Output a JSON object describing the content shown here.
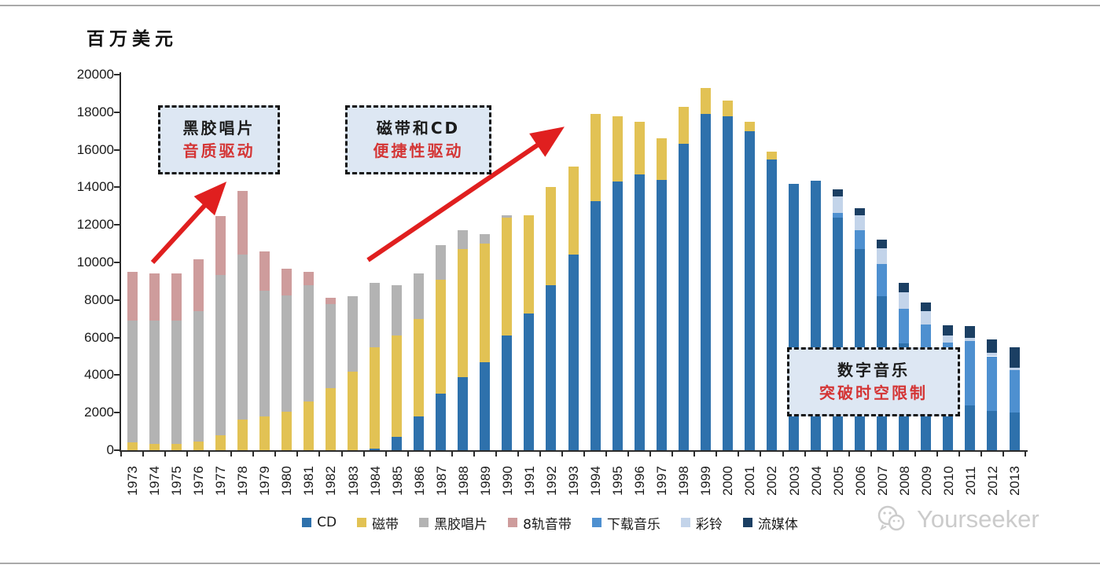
{
  "page": {
    "watermark": "Yourseeker"
  },
  "chart_data": {
    "type": "bar",
    "stacked": true,
    "unit_label": "百万美元",
    "ylabel": "百万美元",
    "xlabel": "",
    "ylim": [
      0,
      20000
    ],
    "ytick_step": 2000,
    "yticks": [
      0,
      2000,
      4000,
      6000,
      8000,
      10000,
      12000,
      14000,
      16000,
      18000,
      20000
    ],
    "grid": false,
    "legend_position": "bottom",
    "categories": [
      "1973",
      "1974",
      "1975",
      "1976",
      "1977",
      "1978",
      "1979",
      "1980",
      "1981",
      "1982",
      "1983",
      "1984",
      "1985",
      "1986",
      "1987",
      "1988",
      "1989",
      "1990",
      "1991",
      "1992",
      "1993",
      "1994",
      "1995",
      "1996",
      "1997",
      "1998",
      "1999",
      "2000",
      "2001",
      "2002",
      "2003",
      "2004",
      "2005",
      "2006",
      "2007",
      "2008",
      "2009",
      "2010",
      "2011",
      "2012",
      "2013"
    ],
    "series": [
      {
        "name": "CD",
        "color": "#2e71ac",
        "values": [
          0,
          0,
          0,
          0,
          0,
          0,
          0,
          0,
          0,
          0,
          0,
          100,
          700,
          1800,
          3000,
          3900,
          4700,
          6100,
          7300,
          8800,
          10400,
          13250,
          14300,
          14700,
          14400,
          16300,
          17900,
          17800,
          17000,
          15500,
          14200,
          14350,
          12400,
          10700,
          8200,
          5700,
          3400,
          3000,
          2400,
          2100,
          2000
        ]
      },
      {
        "name": "磁带",
        "color": "#e2c254",
        "values": [
          400,
          350,
          350,
          450,
          800,
          1650,
          1800,
          2050,
          2600,
          3300,
          4200,
          5400,
          5400,
          5200,
          6100,
          6800,
          6300,
          6300,
          5200,
          5200,
          4700,
          4650,
          3500,
          2800,
          2200,
          2000,
          1400,
          800,
          500,
          400,
          0,
          0,
          0,
          0,
          0,
          0,
          0,
          0,
          0,
          0,
          0
        ]
      },
      {
        "name": "黑胶唱片",
        "color": "#b3b3b3",
        "values": [
          6500,
          6550,
          6550,
          6950,
          8550,
          8750,
          6700,
          6200,
          6200,
          4500,
          4000,
          3400,
          2700,
          2400,
          1800,
          1000,
          500,
          100,
          0,
          0,
          0,
          0,
          0,
          0,
          0,
          0,
          0,
          0,
          0,
          0,
          0,
          0,
          0,
          0,
          0,
          0,
          0,
          0,
          0,
          0,
          0
        ]
      },
      {
        "name": "8轨音带",
        "color": "#ce9c9c",
        "values": [
          2600,
          2500,
          2500,
          2750,
          3100,
          3400,
          2100,
          1400,
          700,
          300,
          0,
          0,
          0,
          0,
          0,
          0,
          0,
          0,
          0,
          0,
          0,
          0,
          0,
          0,
          0,
          0,
          0,
          0,
          0,
          0,
          0,
          0,
          0,
          0,
          0,
          0,
          0,
          0,
          0,
          0,
          0
        ]
      },
      {
        "name": "下载音乐",
        "color": "#4e90d0",
        "values": [
          0,
          0,
          0,
          0,
          0,
          0,
          0,
          0,
          0,
          0,
          0,
          0,
          0,
          0,
          0,
          0,
          0,
          0,
          0,
          0,
          0,
          0,
          0,
          0,
          0,
          0,
          0,
          0,
          0,
          0,
          0,
          0,
          250,
          1000,
          1700,
          1850,
          3300,
          2750,
          3400,
          2900,
          2250
        ]
      },
      {
        "name": "彩铃",
        "color": "#c3d4ea",
        "values": [
          0,
          0,
          0,
          0,
          0,
          0,
          0,
          0,
          0,
          0,
          0,
          0,
          0,
          0,
          0,
          0,
          0,
          0,
          0,
          0,
          0,
          0,
          0,
          0,
          0,
          0,
          0,
          0,
          0,
          0,
          0,
          0,
          850,
          800,
          850,
          850,
          700,
          350,
          200,
          200,
          150
        ]
      },
      {
        "name": "流媒体",
        "color": "#1b3f63",
        "values": [
          0,
          0,
          0,
          0,
          0,
          0,
          0,
          0,
          0,
          0,
          0,
          0,
          0,
          0,
          0,
          0,
          0,
          0,
          0,
          0,
          0,
          0,
          0,
          0,
          0,
          0,
          0,
          0,
          0,
          0,
          0,
          0,
          400,
          400,
          450,
          500,
          450,
          550,
          600,
          700,
          1100
        ]
      }
    ],
    "annotations": [
      {
        "line1": "黑胶唱片",
        "line2": "音质驱动"
      },
      {
        "line1": "磁带和CD",
        "line2": "便捷性驱动"
      },
      {
        "line1": "数字音乐",
        "line2": "突破时空限制"
      }
    ]
  }
}
